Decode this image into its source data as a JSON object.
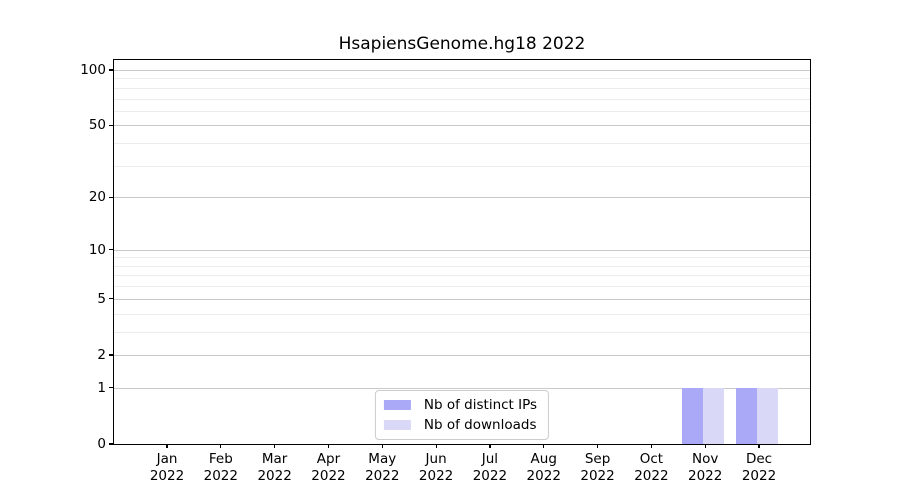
{
  "chart_data": {
    "type": "bar",
    "title": "HsapiensGenome.hg18 2022",
    "categories": [
      "Jan",
      "Feb",
      "Mar",
      "Apr",
      "May",
      "Jun",
      "Jul",
      "Aug",
      "Sep",
      "Oct",
      "Nov",
      "Dec"
    ],
    "category_year": "2022",
    "series": [
      {
        "name": "Nb of distinct IPs",
        "color": "#a9a9f7",
        "values": [
          0,
          0,
          0,
          0,
          0,
          0,
          0,
          0,
          0,
          0,
          1,
          1
        ]
      },
      {
        "name": "Nb of downloads",
        "color": "#d9d9f7",
        "values": [
          0,
          0,
          0,
          0,
          0,
          0,
          0,
          0,
          0,
          0,
          1,
          1
        ]
      }
    ],
    "xlabel": "",
    "ylabel": "",
    "yscale": "log1p",
    "ylim": [
      0,
      100
    ],
    "yticks": [
      0,
      1,
      2,
      5,
      10,
      20,
      50,
      100
    ],
    "yticks_minor": [
      3,
      4,
      6,
      7,
      8,
      9,
      30,
      40,
      60,
      70,
      80,
      90
    ],
    "grid": "both",
    "legend_position": "lower center"
  },
  "colors": {
    "grid_major": "#c9c9c9",
    "grid_minor": "#ececec",
    "spine": "#000000"
  }
}
